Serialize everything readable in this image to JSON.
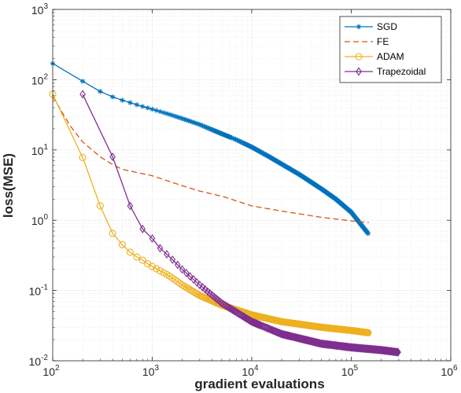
{
  "chart_data": {
    "type": "line",
    "xlabel": "gradient evaluations",
    "ylabel": "loss(MSE)",
    "xscale": "log",
    "yscale": "log",
    "xlim": [
      100,
      1000000
    ],
    "ylim": [
      0.01,
      1000
    ],
    "xticks": [
      {
        "base": "10",
        "exp": "2",
        "value": 100
      },
      {
        "base": "10",
        "exp": "3",
        "value": 1000
      },
      {
        "base": "10",
        "exp": "4",
        "value": 10000
      },
      {
        "base": "10",
        "exp": "5",
        "value": 100000
      },
      {
        "base": "10",
        "exp": "6",
        "value": 1000000
      }
    ],
    "yticks": [
      {
        "base": "10",
        "exp": "-2",
        "value": 0.01
      },
      {
        "base": "10",
        "exp": "-1",
        "value": 0.1
      },
      {
        "base": "10",
        "exp": "0",
        "value": 1
      },
      {
        "base": "10",
        "exp": "1",
        "value": 10
      },
      {
        "base": "10",
        "exp": "2",
        "value": 100
      },
      {
        "base": "10",
        "exp": "3",
        "value": 1000
      }
    ],
    "grid": true,
    "minor_grid": true,
    "legend_position": "top-right",
    "series": [
      {
        "name": "SGD",
        "color": "#0072BD",
        "line": "solid",
        "marker": "asterisk",
        "points": [
          [
            100,
            170
          ],
          [
            200,
            95
          ],
          [
            300,
            68
          ],
          [
            400,
            57
          ],
          [
            500,
            51
          ],
          [
            700,
            44
          ],
          [
            1000,
            38
          ],
          [
            1500,
            32
          ],
          [
            2000,
            28
          ],
          [
            3000,
            23
          ],
          [
            5000,
            17
          ],
          [
            7000,
            14
          ],
          [
            10000,
            11
          ],
          [
            15000,
            8
          ],
          [
            20000,
            6.3
          ],
          [
            30000,
            4.5
          ],
          [
            50000,
            2.8
          ],
          [
            70000,
            2.0
          ],
          [
            100000,
            1.3
          ],
          [
            150000,
            0.63
          ]
        ],
        "marker_every": "dense"
      },
      {
        "name": "FE",
        "color": "#D95319",
        "line": "dashed",
        "marker": "none",
        "points": [
          [
            100,
            58
          ],
          [
            150,
            22
          ],
          [
            200,
            13
          ],
          [
            300,
            8
          ],
          [
            400,
            6.2
          ],
          [
            500,
            5.3
          ],
          [
            1000,
            4.3
          ],
          [
            2000,
            3.1
          ],
          [
            3000,
            2.6
          ],
          [
            5000,
            2.2
          ],
          [
            10000,
            1.6
          ],
          [
            20000,
            1.35
          ],
          [
            50000,
            1.1
          ],
          [
            100000,
            0.98
          ],
          [
            150000,
            0.93
          ]
        ]
      },
      {
        "name": "ADAM",
        "color": "#EDB120",
        "line": "solid",
        "marker": "circle",
        "points": [
          [
            100,
            62
          ],
          [
            200,
            7.8
          ],
          [
            300,
            1.6
          ],
          [
            400,
            0.65
          ],
          [
            500,
            0.45
          ],
          [
            600,
            0.35
          ],
          [
            700,
            0.3
          ],
          [
            800,
            0.27
          ],
          [
            900,
            0.24
          ],
          [
            1000,
            0.22
          ],
          [
            1500,
            0.16
          ],
          [
            2000,
            0.12
          ],
          [
            3000,
            0.085
          ],
          [
            5000,
            0.062
          ],
          [
            10000,
            0.045
          ],
          [
            20000,
            0.036
          ],
          [
            50000,
            0.03
          ],
          [
            100000,
            0.027
          ],
          [
            150000,
            0.025
          ]
        ]
      },
      {
        "name": "Trapezoidal",
        "color": "#7E2F8E",
        "line": "solid",
        "marker": "diamond",
        "points": [
          [
            200,
            62
          ],
          [
            400,
            8.0
          ],
          [
            600,
            1.6
          ],
          [
            800,
            0.75
          ],
          [
            1000,
            0.55
          ],
          [
            1200,
            0.4
          ],
          [
            1500,
            0.3
          ],
          [
            2000,
            0.2
          ],
          [
            3000,
            0.12
          ],
          [
            5000,
            0.066
          ],
          [
            10000,
            0.036
          ],
          [
            20000,
            0.024
          ],
          [
            50000,
            0.0175
          ],
          [
            100000,
            0.0155
          ],
          [
            200000,
            0.0142
          ],
          [
            300000,
            0.0132
          ]
        ]
      }
    ]
  }
}
